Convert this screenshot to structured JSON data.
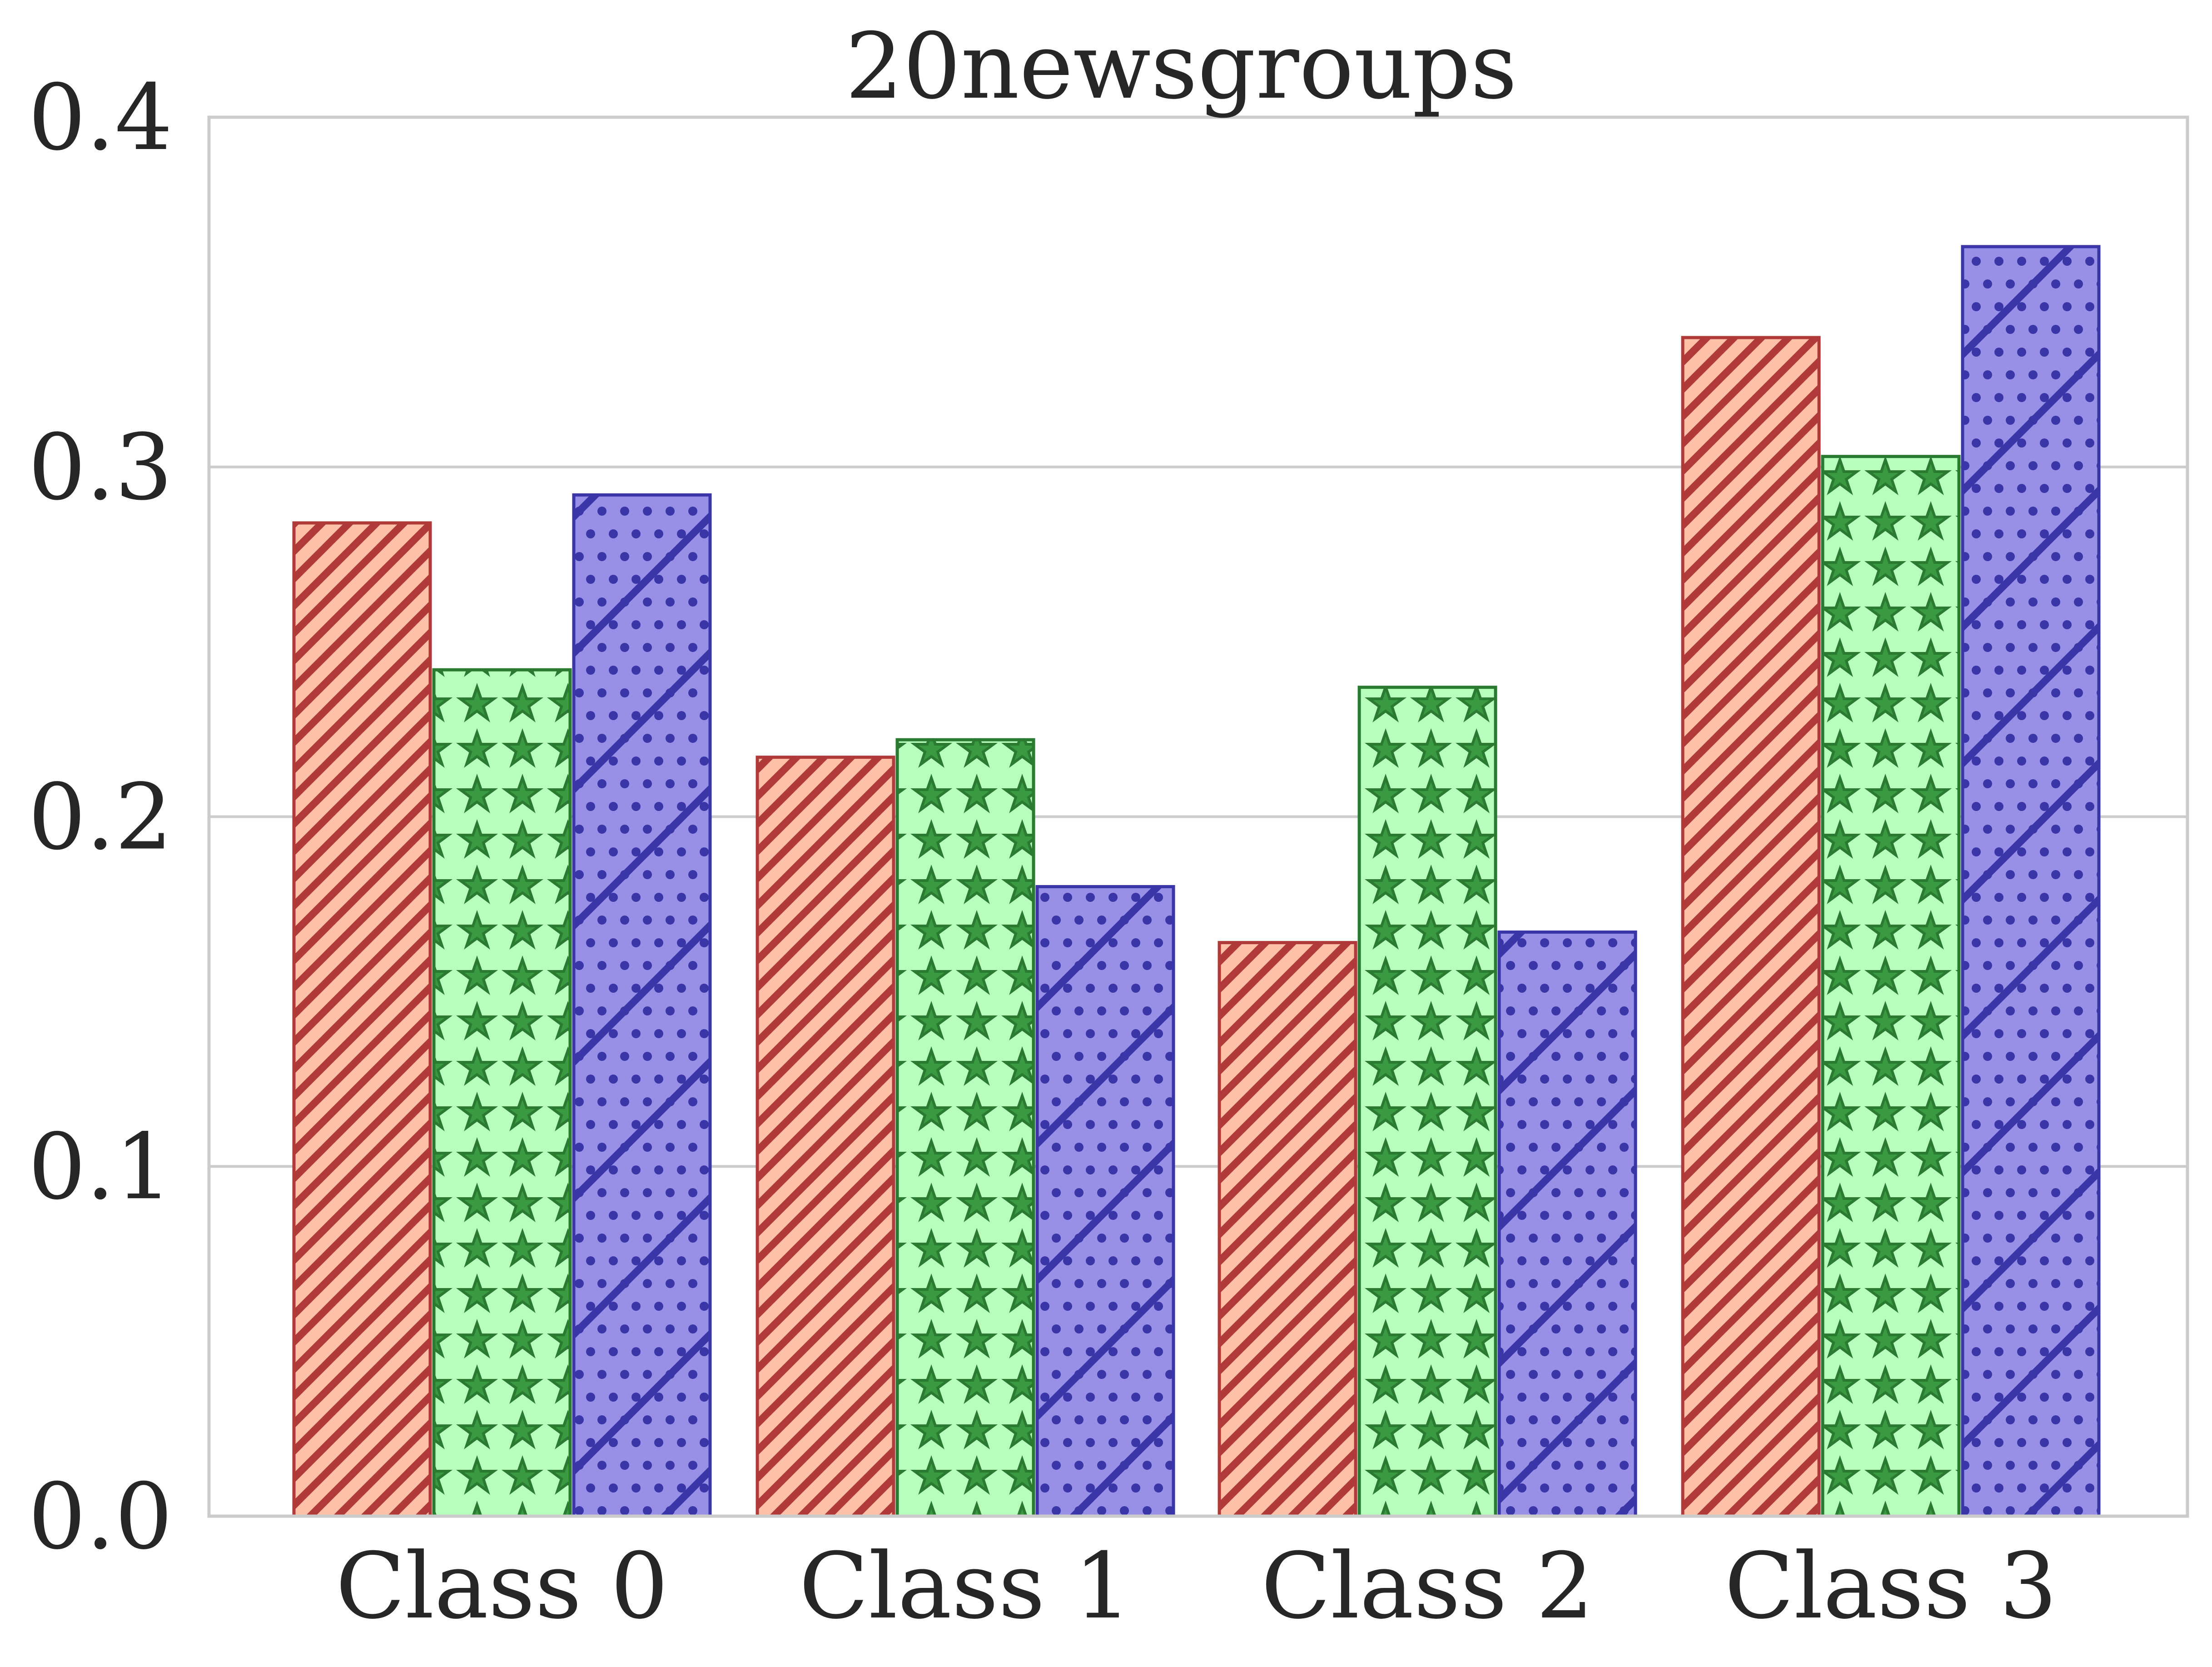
{
  "chart_data": {
    "type": "bar",
    "title": "20newsgroups",
    "xlabel": "",
    "ylabel": "",
    "categories": [
      "Class 0",
      "Class 1",
      "Class 2",
      "Class 3"
    ],
    "ylim": [
      0,
      0.4
    ],
    "yticks": [
      "0.0",
      "0.1",
      "0.2",
      "0.3",
      "0.4"
    ],
    "grid": "horizontal",
    "legend": "none",
    "series": [
      {
        "values": [
          0.284,
          0.217,
          0.164,
          0.337
        ],
        "fill": "#ffc0a8",
        "stroke": "#b03a3a",
        "pattern": "diagonal-stripes"
      },
      {
        "values": [
          0.242,
          0.222,
          0.237,
          0.303
        ],
        "fill": "#b8ffbe",
        "stroke": "#2a7a32",
        "pattern": "stars"
      },
      {
        "values": [
          0.292,
          0.18,
          0.167,
          0.363
        ],
        "fill": "#9890e6",
        "stroke": "#3a36a8",
        "pattern": "dots-and-lines"
      }
    ],
    "colors": {
      "grid": "#cccccc",
      "frame": "#cccccc",
      "text": "#262626"
    }
  }
}
